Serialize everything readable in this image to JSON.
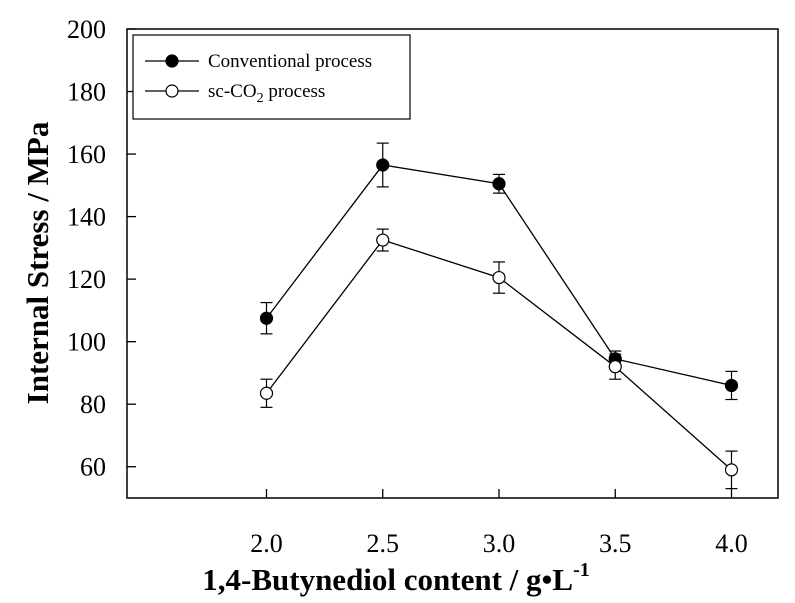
{
  "chart_data": {
    "type": "line",
    "title": "",
    "xlabel": "1,4-Butynediol content / g•L",
    "xlabel_sup": "-1",
    "ylabel": "Internal Stress / MPa",
    "xlim": [
      1.4,
      4.2
    ],
    "ylim": [
      50,
      200
    ],
    "xticks": [
      "2.0",
      "2.5",
      "3.0",
      "3.5",
      "4.0"
    ],
    "xtick_values": [
      2.0,
      2.5,
      3.0,
      3.5,
      4.0
    ],
    "yticks": [
      "60",
      "80",
      "100",
      "120",
      "140",
      "160",
      "180",
      "200"
    ],
    "ytick_values": [
      60,
      80,
      100,
      120,
      140,
      160,
      180,
      200
    ],
    "grid": false,
    "legend_position": "top-left",
    "x": [
      2.0,
      2.5,
      3.0,
      3.5,
      4.0
    ],
    "series": [
      {
        "name": "Conventional process",
        "marker": "filled-circle",
        "values": [
          107.5,
          156.5,
          150.5,
          94.5,
          86
        ],
        "errors": [
          5,
          7,
          3,
          2.5,
          4.5
        ]
      },
      {
        "name": "sc-CO2 process",
        "name_parts": [
          "sc-CO",
          "2",
          " process"
        ],
        "marker": "open-circle",
        "values": [
          83.5,
          132.5,
          120.5,
          92,
          59
        ],
        "errors": [
          4.5,
          3.5,
          5,
          4,
          6
        ]
      }
    ],
    "colors": {
      "line": "#000000",
      "background": "#ffffff"
    }
  }
}
